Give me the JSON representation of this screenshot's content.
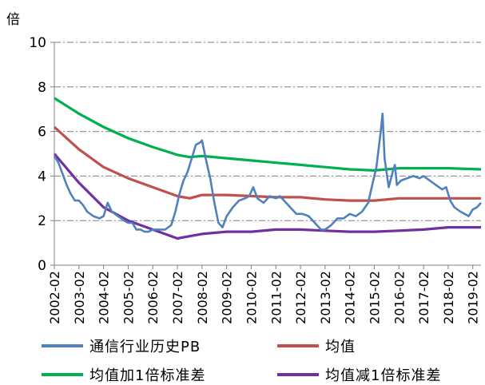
{
  "chart_data": {
    "type": "line",
    "ylabel": "倍",
    "ylim": [
      0,
      10
    ],
    "yticks": [
      "0",
      "2",
      "4",
      "6",
      "8",
      "10"
    ],
    "x_tick_labels": [
      "2002-02",
      "2003-02",
      "2004-02",
      "2005-02",
      "2006-02",
      "2007-02",
      "2008-02",
      "2009-02",
      "2010-02",
      "2011-02",
      "2012-02",
      "2013-02",
      "2014-02",
      "2015-02",
      "2016-02",
      "2017-02",
      "2018-02",
      "2019-02"
    ],
    "xlim": [
      "2002-02",
      "2019-06"
    ],
    "grid": "horizontal dashed",
    "legend_position": "bottom",
    "series": [
      {
        "name": "通信行业历史PB",
        "color": "#4F81BD",
        "points": [
          [
            "2002-02",
            4.9
          ],
          [
            "2002-04",
            4.6
          ],
          [
            "2002-06",
            4.1
          ],
          [
            "2002-08",
            3.6
          ],
          [
            "2002-10",
            3.2
          ],
          [
            "2002-12",
            2.9
          ],
          [
            "2003-02",
            2.9
          ],
          [
            "2003-04",
            2.7
          ],
          [
            "2003-06",
            2.4
          ],
          [
            "2003-09",
            2.2
          ],
          [
            "2003-12",
            2.1
          ],
          [
            "2004-02",
            2.2
          ],
          [
            "2004-04",
            2.8
          ],
          [
            "2004-06",
            2.4
          ],
          [
            "2004-09",
            2.2
          ],
          [
            "2004-12",
            2.0
          ],
          [
            "2005-02",
            1.9
          ],
          [
            "2005-04",
            1.9
          ],
          [
            "2005-06",
            1.6
          ],
          [
            "2005-08",
            1.6
          ],
          [
            "2005-10",
            1.5
          ],
          [
            "2005-12",
            1.5
          ],
          [
            "2006-02",
            1.6
          ],
          [
            "2006-05",
            1.6
          ],
          [
            "2006-08",
            1.6
          ],
          [
            "2006-11",
            1.8
          ],
          [
            "2007-01",
            2.4
          ],
          [
            "2007-03",
            3.2
          ],
          [
            "2007-05",
            3.8
          ],
          [
            "2007-07",
            4.2
          ],
          [
            "2007-09",
            4.8
          ],
          [
            "2007-11",
            5.4
          ],
          [
            "2008-01",
            5.5
          ],
          [
            "2008-02",
            5.6
          ],
          [
            "2008-04",
            4.7
          ],
          [
            "2008-06",
            3.9
          ],
          [
            "2008-08",
            2.8
          ],
          [
            "2008-10",
            1.9
          ],
          [
            "2008-12",
            1.7
          ],
          [
            "2009-02",
            2.2
          ],
          [
            "2009-05",
            2.6
          ],
          [
            "2009-08",
            2.9
          ],
          [
            "2009-11",
            3.0
          ],
          [
            "2010-01",
            3.1
          ],
          [
            "2010-03",
            3.5
          ],
          [
            "2010-05",
            3.0
          ],
          [
            "2010-08",
            2.8
          ],
          [
            "2010-11",
            3.1
          ],
          [
            "2011-02",
            3.0
          ],
          [
            "2011-04",
            3.1
          ],
          [
            "2011-06",
            2.9
          ],
          [
            "2011-09",
            2.6
          ],
          [
            "2011-12",
            2.3
          ],
          [
            "2012-03",
            2.3
          ],
          [
            "2012-06",
            2.2
          ],
          [
            "2012-09",
            1.9
          ],
          [
            "2012-12",
            1.6
          ],
          [
            "2013-02",
            1.6
          ],
          [
            "2013-05",
            1.8
          ],
          [
            "2013-08",
            2.1
          ],
          [
            "2013-11",
            2.1
          ],
          [
            "2014-02",
            2.3
          ],
          [
            "2014-05",
            2.2
          ],
          [
            "2014-08",
            2.4
          ],
          [
            "2014-11",
            2.8
          ],
          [
            "2015-01",
            3.6
          ],
          [
            "2015-03",
            4.4
          ],
          [
            "2015-05",
            5.9
          ],
          [
            "2015-06",
            6.8
          ],
          [
            "2015-07",
            4.8
          ],
          [
            "2015-09",
            3.5
          ],
          [
            "2015-11",
            4.2
          ],
          [
            "2015-12",
            4.5
          ],
          [
            "2016-01",
            3.6
          ],
          [
            "2016-03",
            3.8
          ],
          [
            "2016-06",
            3.9
          ],
          [
            "2016-09",
            4.0
          ],
          [
            "2016-12",
            3.9
          ],
          [
            "2017-02",
            4.0
          ],
          [
            "2017-05",
            3.8
          ],
          [
            "2017-08",
            3.6
          ],
          [
            "2017-11",
            3.4
          ],
          [
            "2018-01",
            3.5
          ],
          [
            "2018-03",
            2.9
          ],
          [
            "2018-05",
            2.6
          ],
          [
            "2018-08",
            2.4
          ],
          [
            "2018-10",
            2.3
          ],
          [
            "2018-12",
            2.2
          ],
          [
            "2019-02",
            2.5
          ],
          [
            "2019-04",
            2.6
          ],
          [
            "2019-06",
            2.8
          ]
        ]
      },
      {
        "name": "均值",
        "color": "#C0504D",
        "points": [
          [
            "2002-02",
            6.2
          ],
          [
            "2003-02",
            5.2
          ],
          [
            "2004-02",
            4.4
          ],
          [
            "2005-02",
            3.9
          ],
          [
            "2006-02",
            3.5
          ],
          [
            "2007-02",
            3.1
          ],
          [
            "2007-08",
            3.0
          ],
          [
            "2008-02",
            3.15
          ],
          [
            "2009-02",
            3.15
          ],
          [
            "2010-02",
            3.1
          ],
          [
            "2011-02",
            3.05
          ],
          [
            "2012-02",
            3.05
          ],
          [
            "2013-02",
            2.95
          ],
          [
            "2014-02",
            2.9
          ],
          [
            "2015-02",
            2.9
          ],
          [
            "2016-02",
            3.0
          ],
          [
            "2017-02",
            3.0
          ],
          [
            "2018-02",
            3.0
          ],
          [
            "2019-06",
            3.0
          ]
        ]
      },
      {
        "name": "均值加1倍标准差",
        "color": "#00B050",
        "points": [
          [
            "2002-02",
            7.5
          ],
          [
            "2003-02",
            6.8
          ],
          [
            "2004-02",
            6.2
          ],
          [
            "2005-02",
            5.7
          ],
          [
            "2006-02",
            5.3
          ],
          [
            "2007-02",
            4.95
          ],
          [
            "2007-08",
            4.85
          ],
          [
            "2008-02",
            4.9
          ],
          [
            "2009-02",
            4.8
          ],
          [
            "2010-02",
            4.7
          ],
          [
            "2011-02",
            4.6
          ],
          [
            "2012-02",
            4.5
          ],
          [
            "2013-02",
            4.4
          ],
          [
            "2014-02",
            4.3
          ],
          [
            "2015-02",
            4.25
          ],
          [
            "2016-02",
            4.35
          ],
          [
            "2017-02",
            4.35
          ],
          [
            "2018-02",
            4.35
          ],
          [
            "2019-06",
            4.3
          ]
        ]
      },
      {
        "name": "均值减1倍标准差",
        "color": "#7030A0",
        "points": [
          [
            "2002-02",
            5.0
          ],
          [
            "2003-02",
            3.7
          ],
          [
            "2004-02",
            2.6
          ],
          [
            "2005-02",
            2.0
          ],
          [
            "2006-02",
            1.6
          ],
          [
            "2007-02",
            1.2
          ],
          [
            "2007-08",
            1.3
          ],
          [
            "2008-02",
            1.4
          ],
          [
            "2009-02",
            1.5
          ],
          [
            "2010-02",
            1.5
          ],
          [
            "2011-02",
            1.6
          ],
          [
            "2012-02",
            1.6
          ],
          [
            "2013-02",
            1.55
          ],
          [
            "2014-02",
            1.5
          ],
          [
            "2015-02",
            1.5
          ],
          [
            "2016-02",
            1.55
          ],
          [
            "2017-02",
            1.6
          ],
          [
            "2018-02",
            1.7
          ],
          [
            "2019-06",
            1.7
          ]
        ]
      }
    ]
  }
}
